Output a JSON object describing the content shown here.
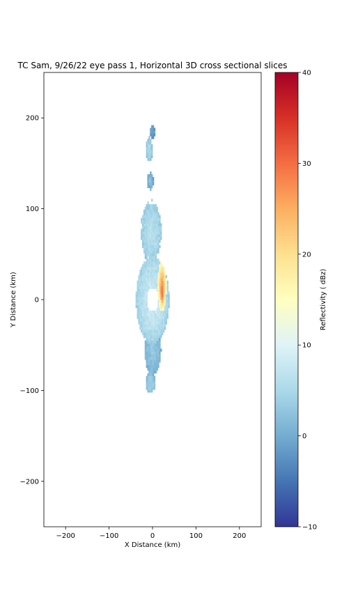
{
  "chart_data": {
    "type": "heatmap",
    "title": "TC Sam, 9/26/22 eye pass 1, Horizontal 3D cross sectional slices",
    "xlabel": "X Distance (km)",
    "ylabel": "Y Distance (km)",
    "xlim": [
      -250,
      250
    ],
    "ylim": [
      -250,
      250
    ],
    "x_ticks": [
      -200,
      -100,
      0,
      100,
      200
    ],
    "y_ticks": [
      -200,
      -100,
      0,
      100,
      200
    ],
    "x_tick_labels": [
      "−200",
      "−100",
      "0",
      "100",
      "200"
    ],
    "y_tick_labels": [
      "−200",
      "−100",
      "0",
      "100",
      "200"
    ],
    "grid": false,
    "colorbar": {
      "label": "Reflectivity ( dBz)",
      "range": [
        -10,
        40
      ],
      "ticks": [
        -10,
        0,
        10,
        20,
        30,
        40
      ],
      "tick_labels": [
        "−10",
        "0",
        "10",
        "20",
        "30",
        "40"
      ],
      "colormap": "RdYlBu_r",
      "colors": [
        "#313695",
        "#4575b4",
        "#74add1",
        "#abd9e9",
        "#e0f3f8",
        "#ffffbf",
        "#fee090",
        "#fdae61",
        "#f46d43",
        "#d73027",
        "#a50026"
      ]
    },
    "features": [
      {
        "name": "eye",
        "center_km": [
          0,
          0
        ],
        "radius_km": 13,
        "value_dbz": null
      },
      {
        "name": "eyewall_ring",
        "center_km": [
          0,
          0
        ],
        "rx_km": 38,
        "ry_km": 48,
        "value_dbz": 6
      },
      {
        "name": "eastern_eyewall_max",
        "center_km": [
          22,
          15
        ],
        "rx_km": 10,
        "ry_km": 28,
        "value_dbz": 25
      },
      {
        "name": "eastern_eyewall_core",
        "center_km": [
          22,
          10
        ],
        "rx_km": 4,
        "ry_km": 14,
        "value_dbz": 30
      },
      {
        "name": "northern_band",
        "center_km": [
          -3,
          75
        ],
        "rx_km": 25,
        "ry_km": 35,
        "value_dbz": 6
      },
      {
        "name": "southern_band",
        "center_km": [
          0,
          -55
        ],
        "rx_km": 20,
        "ry_km": 30,
        "value_dbz": 3
      },
      {
        "name": "south_cell",
        "center_km": [
          -5,
          -92
        ],
        "rx_km": 12,
        "ry_km": 12,
        "value_dbz": 4
      },
      {
        "name": "north_cell_lower",
        "center_km": [
          -5,
          130
        ],
        "rx_km": 8,
        "ry_km": 10,
        "value_dbz": 2
      },
      {
        "name": "north_cell_middle",
        "center_km": [
          -8,
          165
        ],
        "rx_km": 8,
        "ry_km": 14,
        "value_dbz": 5
      },
      {
        "name": "north_cell_upper",
        "center_km": [
          0,
          185
        ],
        "rx_km": 6,
        "ry_km": 7,
        "value_dbz": 0
      }
    ]
  }
}
